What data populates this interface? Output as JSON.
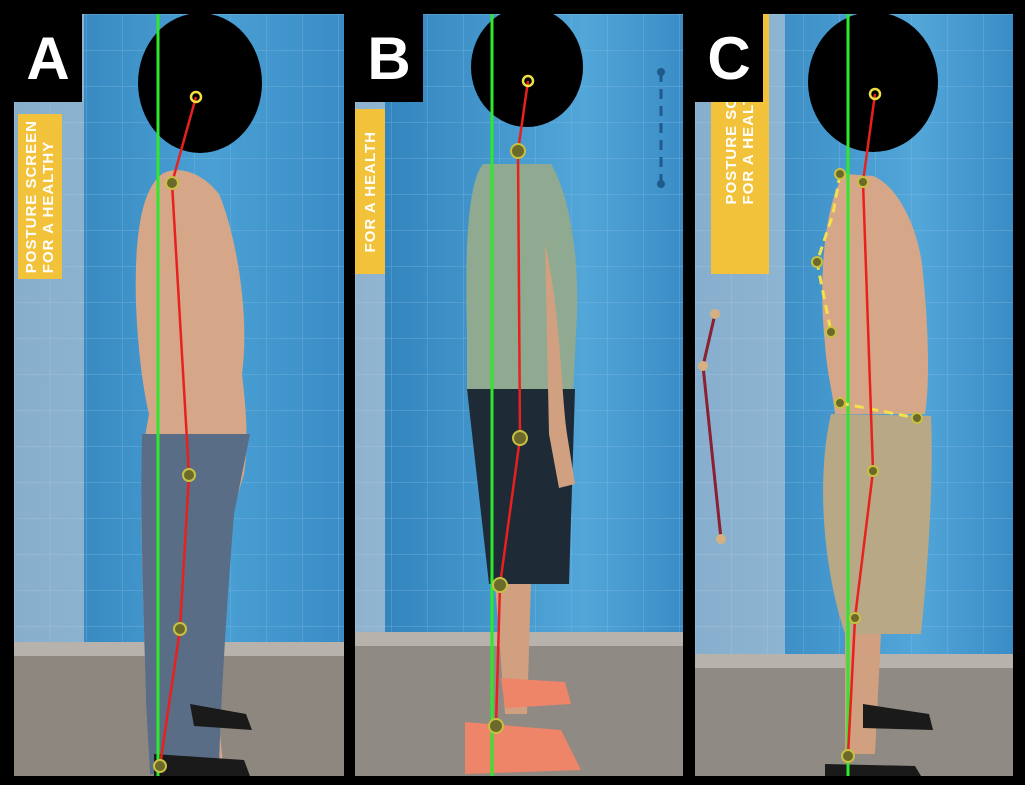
{
  "panels": [
    {
      "id": "A",
      "label": "A",
      "banner_text": "POSTURE SCREEN\nFOR A HEALTHY"
    },
    {
      "id": "B",
      "label": "B",
      "banner_text": "FOR A HEALTH"
    },
    {
      "id": "C",
      "label": "C",
      "banner_text": "POSTURE SCR\nFOR A HEALTH"
    }
  ],
  "colors": {
    "plumb_line": "#2ee82e",
    "posture_line": "#e8201e",
    "landmark": "#f0e040",
    "reference_dashed": "#f3e04a",
    "background_wall": "#3f8fc4",
    "floor": "#8d8780",
    "head_mask": "#000000",
    "banner": "#f2c23a"
  },
  "landmark_icon": "circle-target-icon"
}
